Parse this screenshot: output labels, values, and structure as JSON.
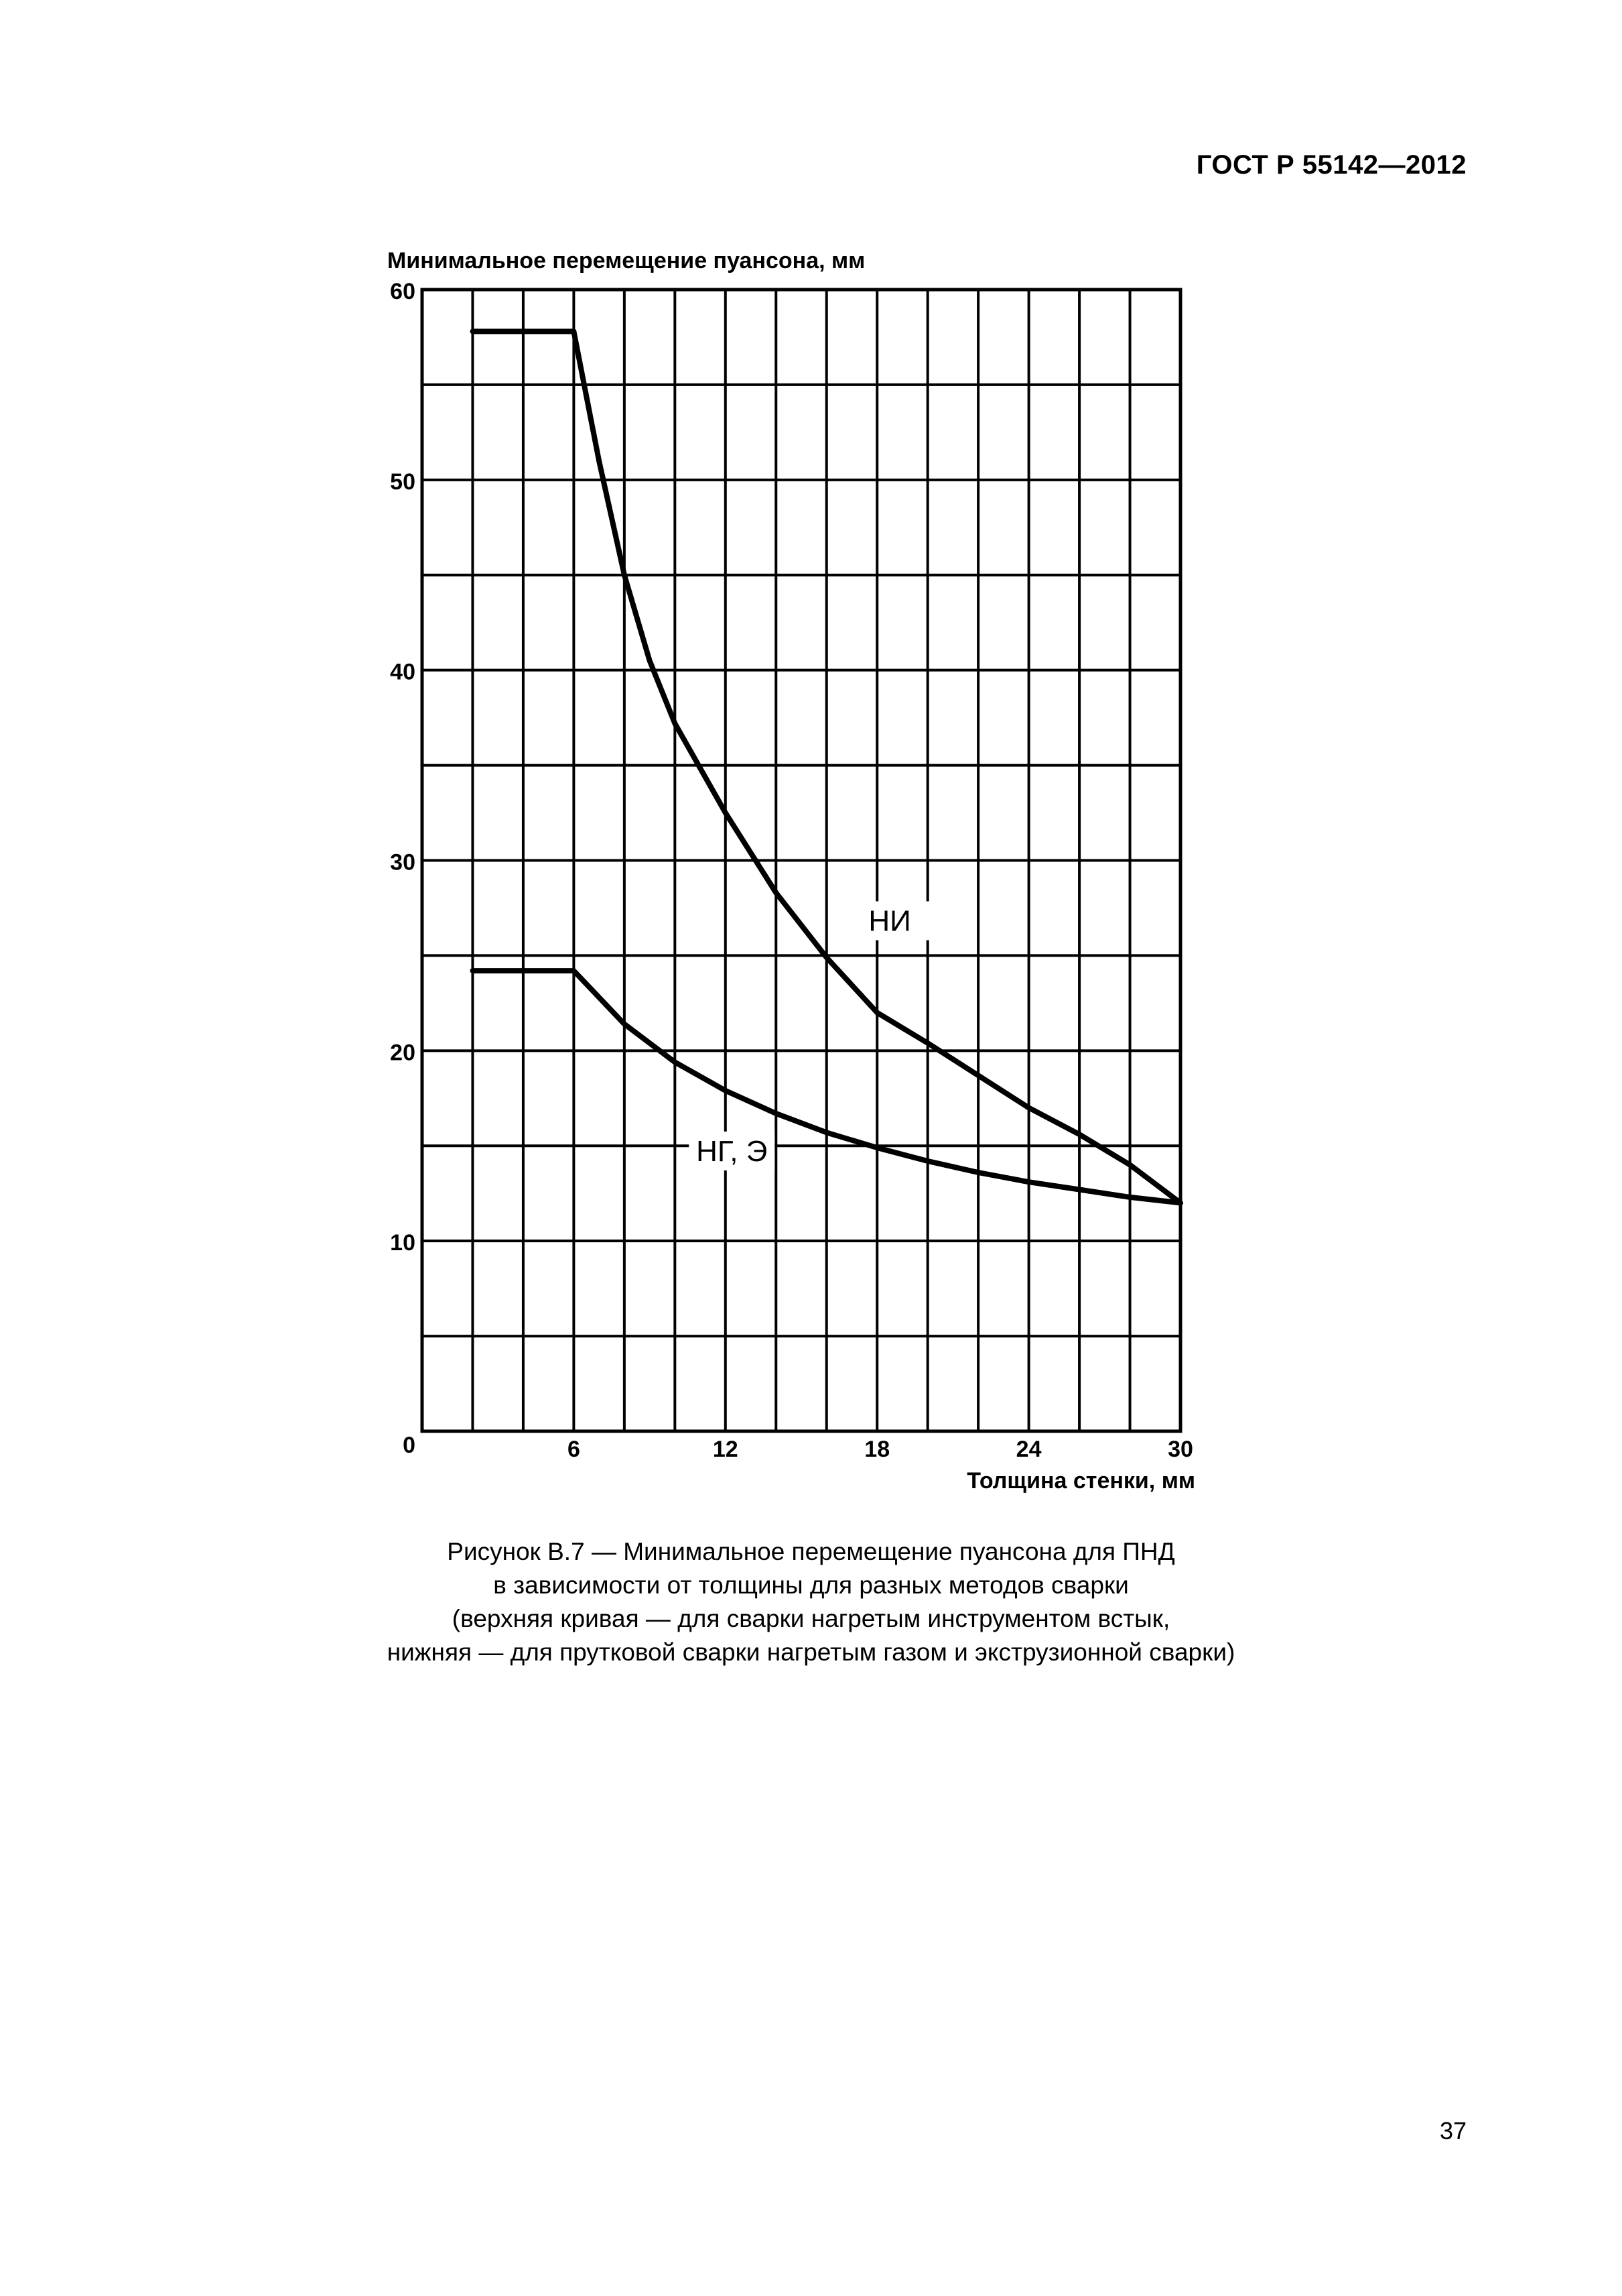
{
  "header": {
    "standard_id": "ГОСТ Р 55142—2012"
  },
  "chart_data": {
    "type": "line",
    "xlabel": "Толщина стенки, мм",
    "ylabel": "Минимальное перемещение пуансона, мм",
    "xlim": [
      0,
      30
    ],
    "ylim": [
      0,
      60
    ],
    "x_ticks": [
      0,
      6,
      12,
      18,
      24,
      30
    ],
    "y_ticks": [
      0,
      10,
      20,
      30,
      40,
      50,
      60
    ],
    "grid": true,
    "grid_x_step": 2,
    "grid_y_step": 5,
    "series": [
      {
        "name": "НИ",
        "x": [
          2,
          6,
          7,
          8,
          9,
          10,
          12,
          14,
          16,
          18,
          20,
          22,
          24,
          26,
          28,
          30
        ],
        "y": [
          57.8,
          57.8,
          51,
          45,
          40.5,
          37.2,
          32.5,
          28.3,
          24.9,
          22,
          20.4,
          18.7,
          17,
          15.6,
          14,
          12
        ]
      },
      {
        "name": "НГ, Э",
        "x": [
          2,
          6,
          8,
          10,
          12,
          14,
          16,
          18,
          20,
          22,
          24,
          26,
          28,
          30
        ],
        "y": [
          24.2,
          24.2,
          21.4,
          19.4,
          17.9,
          16.7,
          15.7,
          14.9,
          14.2,
          13.6,
          13.1,
          12.7,
          12.3,
          12
        ]
      }
    ]
  },
  "caption": {
    "lines": [
      "Рисунок В.7 — Минимальное перемещение пуансона  для ПНД",
      "в зависимости от толщины для разных методов сварки",
      "(верхняя кривая — для сварки нагретым инструментом встык,",
      "нижняя — для прутковой сварки нагретым газом и экструзионной сварки)"
    ]
  },
  "footer": {
    "page_number": "37"
  }
}
